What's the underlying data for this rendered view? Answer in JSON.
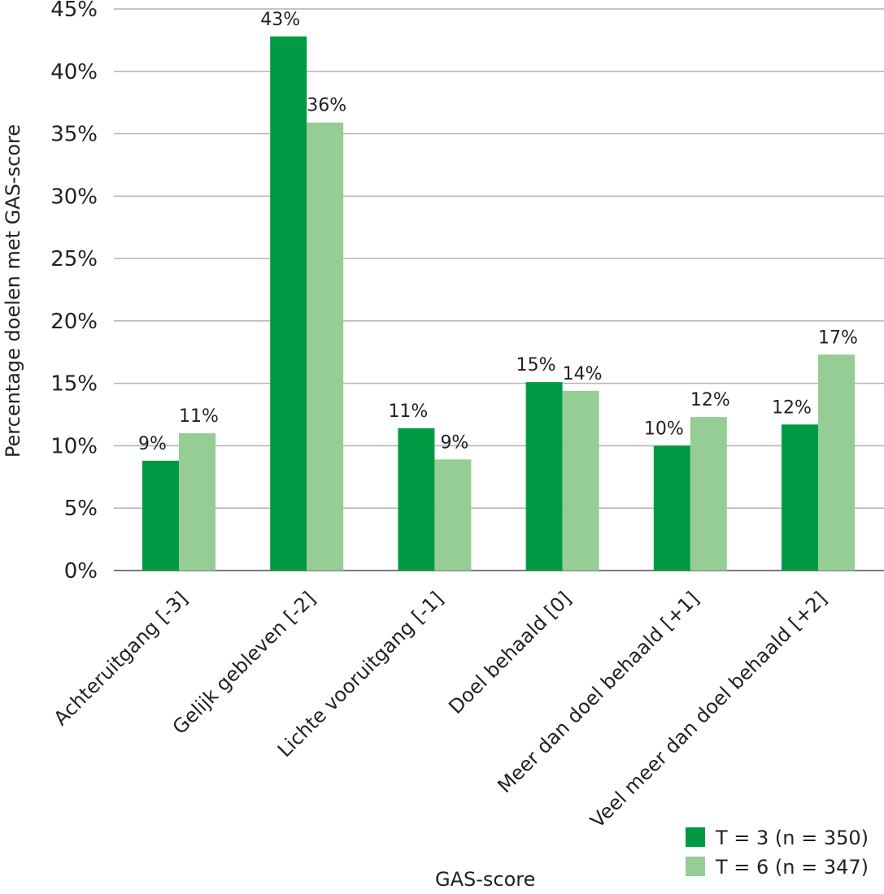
{
  "chart_data": {
    "type": "bar",
    "categories": [
      "Achteruitgang [-3]",
      "Gelijk gebleven [-2]",
      "Lichte vooruitgang [-1]",
      "Doel behaald [0]",
      "Meer dan doel behaald [+1]",
      "Veel meer dan doel behaald [+2]"
    ],
    "series": [
      {
        "name": "T = 3 (n = 350)",
        "color": "#009a44",
        "values": [
          8.8,
          42.8,
          11.4,
          15.1,
          10.0,
          11.7
        ],
        "labels": [
          "9%",
          "43%",
          "11%",
          "15%",
          "10%",
          "12%"
        ]
      },
      {
        "name": "T = 6 (n = 347)",
        "color": "#95cd94",
        "values": [
          11.0,
          35.9,
          8.9,
          14.4,
          12.3,
          17.3
        ],
        "labels": [
          "11%",
          "36%",
          "9%",
          "14%",
          "12%",
          "17%"
        ]
      }
    ],
    "xlabel": "GAS-score",
    "ylabel": "Percentage doelen met GAS-score",
    "ylim": [
      0,
      45
    ],
    "yticks": [
      "0%",
      "5%",
      "10%",
      "15%",
      "20%",
      "25%",
      "30%",
      "35%",
      "40%",
      "45%"
    ],
    "grid": true,
    "legend_position": "bottom-right"
  }
}
